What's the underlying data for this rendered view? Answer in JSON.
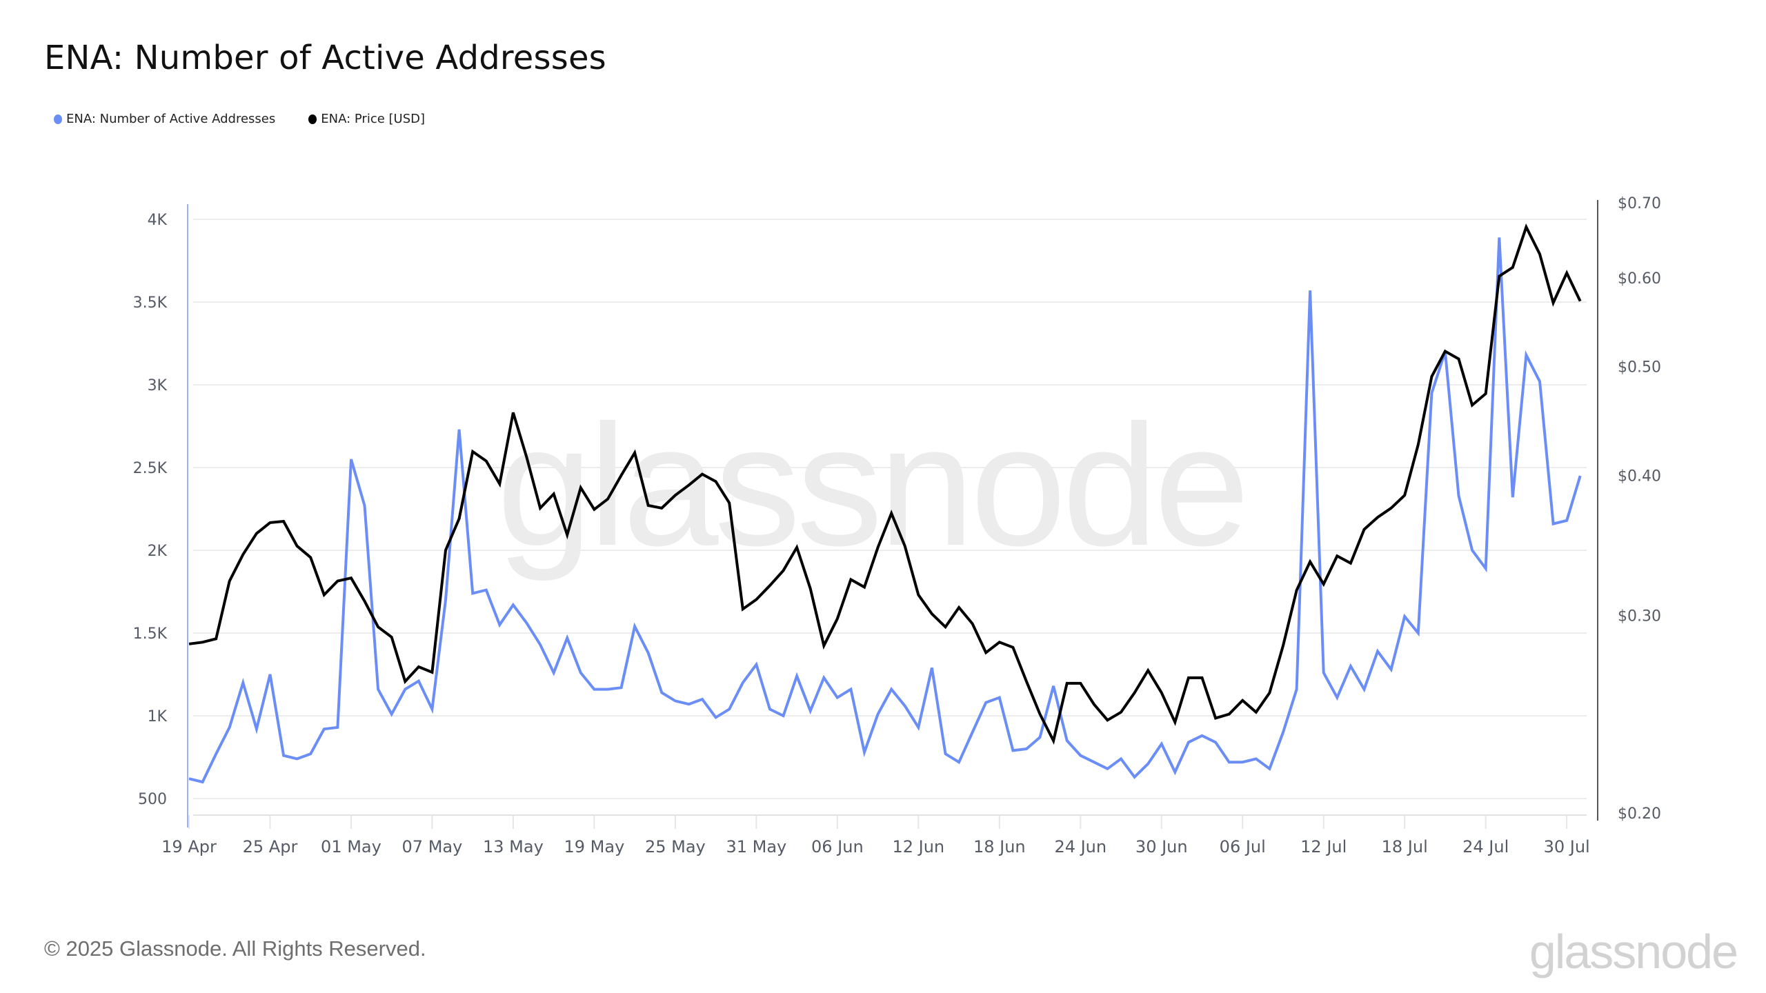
{
  "header": {
    "title": "ENA: Number of Active Addresses"
  },
  "legend": [
    {
      "label": "ENA: Number of Active Addresses",
      "color": "#6b8ef6"
    },
    {
      "label": "ENA: Price [USD]",
      "color": "#000000"
    }
  ],
  "watermark": "glassnode",
  "footer": {
    "copyright": "© 2025 Glassnode. All Rights Reserved.",
    "brand": "glassnode"
  },
  "colors": {
    "addresses": "#6b8ef6",
    "price": "#000000",
    "grid": "#ececec",
    "axis_text": "#555a64",
    "left_axis": "#9db3f8",
    "right_axis": "#555555"
  },
  "chart_data": {
    "type": "line",
    "title": "ENA: Number of Active Addresses",
    "xlabel": "",
    "ylabel": "Active Addresses",
    "y2label": "Price [USD]",
    "x_start": "19 Apr",
    "x_end": "31 Jul",
    "x_tick_labels": [
      "19 Apr",
      "25 Apr",
      "01 May",
      "07 May",
      "13 May",
      "19 May",
      "25 May",
      "31 May",
      "06 Jun",
      "12 Jun",
      "18 Jun",
      "24 Jun",
      "30 Jun",
      "06 Jul",
      "12 Jul",
      "18 Jul",
      "24 Jul",
      "30 Jul"
    ],
    "x_tick_day_index": [
      0,
      6,
      12,
      18,
      24,
      30,
      36,
      42,
      48,
      54,
      60,
      66,
      72,
      78,
      84,
      90,
      96,
      102
    ],
    "y_left_ticks": [
      {
        "value": 500,
        "label": "500"
      },
      {
        "value": 1000,
        "label": "1K"
      },
      {
        "value": 1500,
        "label": "1.5K"
      },
      {
        "value": 2000,
        "label": "2K"
      },
      {
        "value": 2500,
        "label": "2.5K"
      },
      {
        "value": 3000,
        "label": "3K"
      },
      {
        "value": 3500,
        "label": "3.5K"
      },
      {
        "value": 4000,
        "label": "4K"
      }
    ],
    "y_right_scale": "log",
    "y_right_ticks": [
      {
        "value": 0.2,
        "label": "$0.20"
      },
      {
        "value": 0.3,
        "label": "$0.30"
      },
      {
        "value": 0.4,
        "label": "$0.40"
      },
      {
        "value": 0.5,
        "label": "$0.50"
      },
      {
        "value": 0.6,
        "label": "$0.60"
      },
      {
        "value": 0.7,
        "label": "$0.70"
      }
    ],
    "ylim": [
      500,
      4000
    ],
    "y2lim": [
      0.2,
      0.7
    ],
    "grid": true,
    "legend_position": "top-left",
    "series": [
      {
        "name": "ENA: Number of Active Addresses",
        "axis": "left",
        "color": "#6b8ef6",
        "values": [
          620,
          600,
          770,
          930,
          1200,
          920,
          1250,
          760,
          740,
          770,
          920,
          930,
          2550,
          2270,
          1160,
          1010,
          1160,
          1210,
          1040,
          1700,
          2730,
          1740,
          1760,
          1550,
          1670,
          1560,
          1430,
          1260,
          1470,
          1260,
          1160,
          1160,
          1170,
          1540,
          1380,
          1140,
          1090,
          1070,
          1100,
          990,
          1040,
          1200,
          1310,
          1040,
          1000,
          1240,
          1030,
          1230,
          1110,
          1160,
          780,
          1010,
          1160,
          1060,
          930,
          1290,
          770,
          720,
          900,
          1080,
          1110,
          790,
          800,
          870,
          1180,
          850,
          760,
          720,
          680,
          740,
          630,
          710,
          830,
          660,
          840,
          880,
          840,
          720,
          720,
          740,
          680,
          900,
          1160,
          3570,
          1260,
          1110,
          1300,
          1160,
          1390,
          1280,
          1600,
          1500,
          2950,
          3200,
          2330,
          2000,
          1890,
          3890,
          2320,
          3180,
          3020,
          2160,
          2180,
          2450
        ]
      },
      {
        "name": "ENA: Price [USD]",
        "axis": "right",
        "color": "#000000",
        "values": [
          0.283,
          0.284,
          0.286,
          0.322,
          0.34,
          0.355,
          0.363,
          0.364,
          0.346,
          0.338,
          0.313,
          0.322,
          0.324,
          0.309,
          0.293,
          0.287,
          0.262,
          0.27,
          0.267,
          0.343,
          0.366,
          0.42,
          0.412,
          0.393,
          0.455,
          0.415,
          0.374,
          0.385,
          0.354,
          0.39,
          0.373,
          0.381,
          0.4,
          0.419,
          0.376,
          0.374,
          0.384,
          0.392,
          0.401,
          0.395,
          0.378,
          0.304,
          0.31,
          0.319,
          0.329,
          0.345,
          0.317,
          0.282,
          0.298,
          0.323,
          0.318,
          0.345,
          0.37,
          0.346,
          0.313,
          0.301,
          0.293,
          0.305,
          0.295,
          0.278,
          0.284,
          0.281,
          0.262,
          0.245,
          0.232,
          0.261,
          0.261,
          0.25,
          0.242,
          0.246,
          0.256,
          0.268,
          0.256,
          0.241,
          0.264,
          0.264,
          0.243,
          0.245,
          0.252,
          0.246,
          0.256,
          0.282,
          0.316,
          0.335,
          0.32,
          0.339,
          0.334,
          0.358,
          0.367,
          0.374,
          0.384,
          0.426,
          0.49,
          0.516,
          0.508,
          0.462,
          0.473,
          0.602,
          0.613,
          0.666,
          0.63,
          0.57,
          0.606,
          0.572
        ]
      }
    ]
  }
}
